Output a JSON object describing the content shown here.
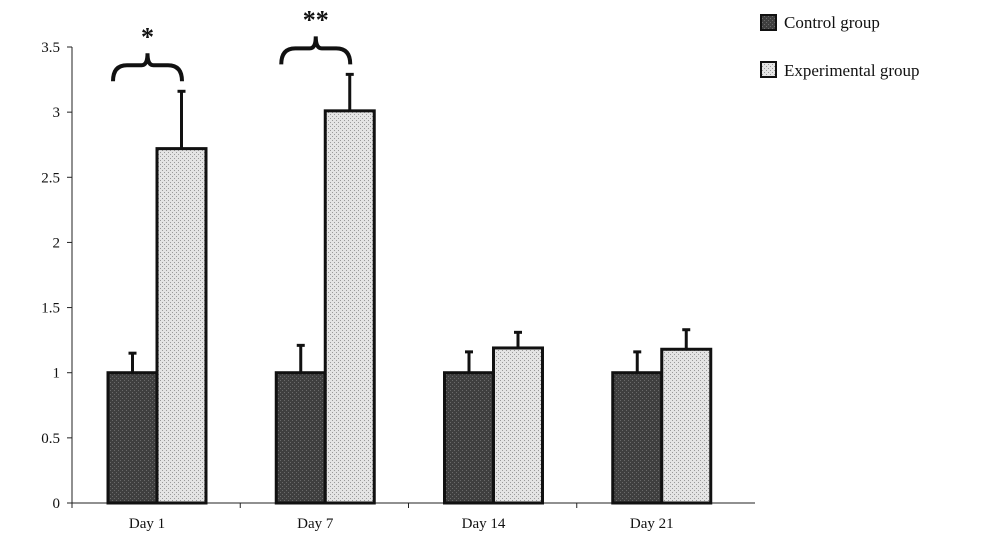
{
  "chart_data": {
    "type": "bar",
    "categories": [
      "Day 1",
      "Day 7",
      "Day 14",
      "Day 21"
    ],
    "series": [
      {
        "name": "Control group",
        "values": [
          1.0,
          1.0,
          1.0,
          1.0
        ],
        "errors": [
          0.15,
          0.21,
          0.16,
          0.16
        ],
        "color": "#4d4d4d"
      },
      {
        "name": "Experimental group",
        "values": [
          2.72,
          3.01,
          1.19,
          1.18
        ],
        "errors": [
          0.44,
          0.28,
          0.12,
          0.15
        ],
        "color": "#dcdcdc"
      }
    ],
    "yticks": [
      "0",
      "0.5",
      "1",
      "1.5",
      "2",
      "2.5",
      "3",
      "3.5"
    ],
    "ylim": [
      0,
      3.5
    ],
    "legend_position": "top-right",
    "significance": [
      {
        "category": "Day 1",
        "label": "*"
      },
      {
        "category": "Day 7",
        "label": "**"
      }
    ],
    "grid": false
  }
}
